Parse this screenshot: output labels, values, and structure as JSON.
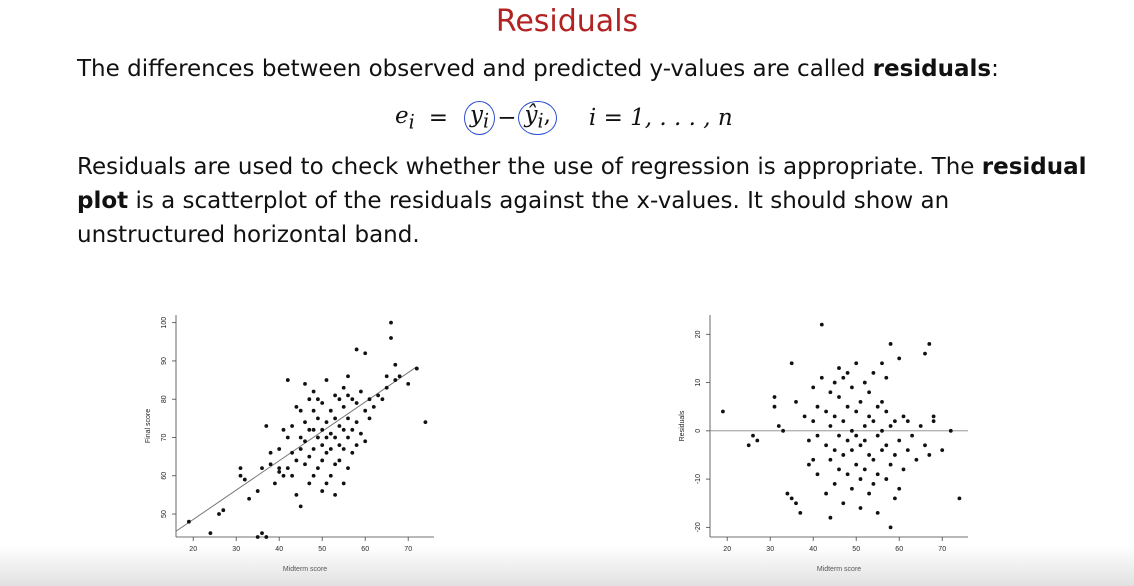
{
  "title": "Residuals",
  "paragraph1": {
    "before": "The differences between observed and predicted y-values are called ",
    "bold": "residuals",
    "after": ":"
  },
  "formula": {
    "lhs": "e",
    "lhs_sub": "i",
    "equals": "=",
    "term1": "y",
    "term1_sub": "i",
    "minus": "−",
    "term2": "ŷ",
    "term2_sub": "i",
    "term2_comma": ",",
    "index": "i = 1, . . . , n"
  },
  "paragraph2": {
    "part1": "Residuals are used to check whether the use of regression is appropriate. The ",
    "bold1": "residual",
    "bold2": "plot",
    "part2": " is a scatterplot of the residuals against the x-values. It should show an unstructured horizontal band."
  },
  "chart_data": [
    {
      "type": "scatter",
      "title": "",
      "xlabel": "Midterm score",
      "ylabel": "Final score",
      "xlim": [
        16,
        76
      ],
      "ylim": [
        44,
        102
      ],
      "xticks": [
        20,
        30,
        40,
        50,
        60,
        70
      ],
      "yticks": [
        50,
        60,
        70,
        80,
        90,
        100
      ],
      "regression_line": {
        "x": [
          16,
          72
        ],
        "y": [
          45.5,
          88.5
        ]
      },
      "points": [
        [
          19,
          48
        ],
        [
          24,
          45
        ],
        [
          26,
          50
        ],
        [
          27,
          51
        ],
        [
          31,
          60
        ],
        [
          31,
          62
        ],
        [
          32,
          59
        ],
        [
          33,
          54
        ],
        [
          35,
          56
        ],
        [
          36,
          62
        ],
        [
          37,
          73
        ],
        [
          35,
          44
        ],
        [
          36,
          45
        ],
        [
          37,
          44
        ],
        [
          38,
          63
        ],
        [
          39,
          58
        ],
        [
          40,
          61
        ],
        [
          40,
          67
        ],
        [
          41,
          60
        ],
        [
          41,
          72
        ],
        [
          42,
          85
        ],
        [
          42,
          62
        ],
        [
          42,
          70
        ],
        [
          43,
          66
        ],
        [
          43,
          73
        ],
        [
          43,
          60
        ],
        [
          44,
          55
        ],
        [
          44,
          64
        ],
        [
          45,
          52
        ],
        [
          45,
          67
        ],
        [
          45,
          70
        ],
        [
          45,
          77
        ],
        [
          46,
          63
        ],
        [
          46,
          69
        ],
        [
          46,
          74
        ],
        [
          47,
          58
        ],
        [
          47,
          65
        ],
        [
          47,
          72
        ],
        [
          47,
          80
        ],
        [
          48,
          60
        ],
        [
          48,
          67
        ],
        [
          48,
          72
        ],
        [
          48,
          77
        ],
        [
          48,
          82
        ],
        [
          49,
          62
        ],
        [
          49,
          70
        ],
        [
          49,
          75
        ],
        [
          49,
          80
        ],
        [
          50,
          56
        ],
        [
          50,
          64
        ],
        [
          50,
          68
        ],
        [
          50,
          72
        ],
        [
          50,
          79
        ],
        [
          51,
          58
        ],
        [
          51,
          66
        ],
        [
          51,
          70
        ],
        [
          51,
          74
        ],
        [
          51,
          85
        ],
        [
          52,
          60
        ],
        [
          52,
          67
        ],
        [
          52,
          71
        ],
        [
          52,
          77
        ],
        [
          53,
          55
        ],
        [
          53,
          63
        ],
        [
          53,
          70
        ],
        [
          53,
          75
        ],
        [
          53,
          81
        ],
        [
          54,
          64
        ],
        [
          54,
          68
        ],
        [
          54,
          73
        ],
        [
          54,
          80
        ],
        [
          55,
          58
        ],
        [
          55,
          67
        ],
        [
          55,
          72
        ],
        [
          55,
          78
        ],
        [
          55,
          83
        ],
        [
          56,
          62
        ],
        [
          56,
          70
        ],
        [
          56,
          75
        ],
        [
          56,
          81
        ],
        [
          56,
          86
        ],
        [
          57,
          66
        ],
        [
          57,
          72
        ],
        [
          57,
          80
        ],
        [
          58,
          68
        ],
        [
          58,
          74
        ],
        [
          58,
          79
        ],
        [
          58,
          93
        ],
        [
          59,
          71
        ],
        [
          59,
          82
        ],
        [
          60,
          69
        ],
        [
          60,
          77
        ],
        [
          60,
          92
        ],
        [
          61,
          75
        ],
        [
          61,
          80
        ],
        [
          62,
          78
        ],
        [
          63,
          81
        ],
        [
          64,
          80
        ],
        [
          65,
          83
        ],
        [
          65,
          86
        ],
        [
          66,
          96
        ],
        [
          66,
          100
        ],
        [
          67,
          85
        ],
        [
          67,
          89
        ],
        [
          68,
          86
        ],
        [
          70,
          84
        ],
        [
          72,
          88
        ],
        [
          74,
          74
        ],
        [
          46,
          84
        ],
        [
          40,
          62
        ],
        [
          44,
          78
        ],
        [
          38,
          66
        ]
      ]
    },
    {
      "type": "scatter",
      "title": "",
      "xlabel": "Midterm score",
      "ylabel": "Residuals",
      "xlim": [
        16,
        76
      ],
      "ylim": [
        -22,
        24
      ],
      "xticks": [
        20,
        30,
        40,
        50,
        60,
        70
      ],
      "yticks": [
        -20,
        -10,
        0,
        10,
        20
      ],
      "hline": 0,
      "points": [
        [
          19,
          4
        ],
        [
          25,
          -3
        ],
        [
          26,
          -1
        ],
        [
          27,
          -2
        ],
        [
          31,
          5
        ],
        [
          31,
          7
        ],
        [
          32,
          1
        ],
        [
          33,
          0
        ],
        [
          34,
          -13
        ],
        [
          35,
          -14
        ],
        [
          36,
          -15
        ],
        [
          37,
          -17
        ],
        [
          38,
          3
        ],
        [
          39,
          -2
        ],
        [
          35,
          14
        ],
        [
          36,
          6
        ],
        [
          39,
          -7
        ],
        [
          40,
          -6
        ],
        [
          40,
          2
        ],
        [
          40,
          9
        ],
        [
          41,
          -9
        ],
        [
          41,
          -1
        ],
        [
          41,
          5
        ],
        [
          42,
          22
        ],
        [
          42,
          11
        ],
        [
          43,
          -13
        ],
        [
          43,
          -3
        ],
        [
          43,
          4
        ],
        [
          44,
          -18
        ],
        [
          44,
          -6
        ],
        [
          44,
          1
        ],
        [
          44,
          8
        ],
        [
          45,
          -11
        ],
        [
          45,
          -4
        ],
        [
          45,
          3
        ],
        [
          45,
          10
        ],
        [
          46,
          -8
        ],
        [
          46,
          -1
        ],
        [
          46,
          7
        ],
        [
          46,
          13
        ],
        [
          47,
          -15
        ],
        [
          47,
          -5
        ],
        [
          47,
          2
        ],
        [
          47,
          11
        ],
        [
          48,
          -9
        ],
        [
          48,
          -2
        ],
        [
          48,
          5
        ],
        [
          48,
          12
        ],
        [
          49,
          -12
        ],
        [
          49,
          -4
        ],
        [
          49,
          0
        ],
        [
          49,
          9
        ],
        [
          50,
          -7
        ],
        [
          50,
          -1
        ],
        [
          50,
          4
        ],
        [
          50,
          14
        ],
        [
          51,
          -16
        ],
        [
          51,
          -10
        ],
        [
          51,
          -3
        ],
        [
          51,
          6
        ],
        [
          52,
          -8
        ],
        [
          52,
          -2
        ],
        [
          52,
          1
        ],
        [
          52,
          10
        ],
        [
          53,
          -13
        ],
        [
          53,
          -5
        ],
        [
          53,
          3
        ],
        [
          53,
          8
        ],
        [
          54,
          -11
        ],
        [
          54,
          -6
        ],
        [
          54,
          2
        ],
        [
          54,
          12
        ],
        [
          55,
          -17
        ],
        [
          55,
          -9
        ],
        [
          55,
          -1
        ],
        [
          55,
          5
        ],
        [
          56,
          -4
        ],
        [
          56,
          0
        ],
        [
          56,
          6
        ],
        [
          56,
          14
        ],
        [
          57,
          -10
        ],
        [
          57,
          -3
        ],
        [
          57,
          4
        ],
        [
          57,
          11
        ],
        [
          58,
          -20
        ],
        [
          58,
          -7
        ],
        [
          58,
          1
        ],
        [
          58,
          18
        ],
        [
          59,
          -14
        ],
        [
          59,
          -5
        ],
        [
          59,
          2
        ],
        [
          60,
          -12
        ],
        [
          60,
          -2
        ],
        [
          60,
          15
        ],
        [
          61,
          -8
        ],
        [
          61,
          3
        ],
        [
          62,
          -4
        ],
        [
          62,
          2
        ],
        [
          63,
          -1
        ],
        [
          64,
          -6
        ],
        [
          65,
          1
        ],
        [
          66,
          -3
        ],
        [
          66,
          16
        ],
        [
          67,
          18
        ],
        [
          67,
          -5
        ],
        [
          68,
          2
        ],
        [
          70,
          -4
        ],
        [
          72,
          0
        ],
        [
          74,
          -14
        ],
        [
          68,
          3
        ]
      ]
    }
  ]
}
